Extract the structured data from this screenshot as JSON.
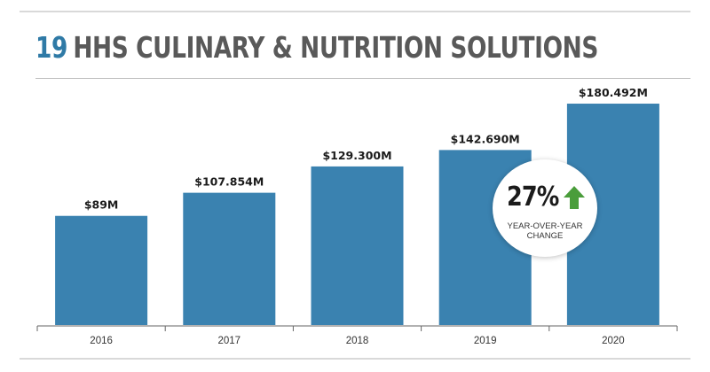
{
  "header": {
    "rank": "19",
    "name": "HHS CULINARY & NUTRITION SOLUTIONS"
  },
  "badge": {
    "percent": "27%",
    "arrow_icon": "up-arrow-icon",
    "arrow_color": "#4a9d3b",
    "label_line1": "YEAR-OVER-YEAR",
    "label_line2": "CHANGE"
  },
  "chart_data": {
    "type": "bar",
    "categories": [
      "2016",
      "2017",
      "2018",
      "2019",
      "2020"
    ],
    "values": [
      89,
      107.854,
      129.3,
      142.69,
      180.492
    ],
    "value_labels": [
      "$89M",
      "$107.854M",
      "$129.300M",
      "$142.690M",
      "$180.492M"
    ],
    "title": "",
    "xlabel": "",
    "ylabel": "",
    "ylim": [
      0,
      200
    ],
    "bar_color": "#3a82b0",
    "grid": false,
    "legend": "none"
  }
}
